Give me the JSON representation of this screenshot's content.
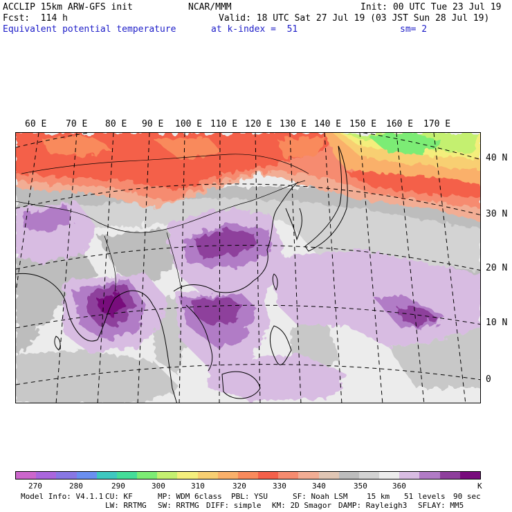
{
  "header": {
    "model_title": "ACCLIP 15km ARW-GFS init",
    "forecast": "Fcst:  114 h",
    "field_name": "Equivalent potential temperature",
    "institution": "NCAR/MMM",
    "init_time": "Init: 00 UTC Tue 23 Jul 19",
    "valid_time": "Valid: 18 UTC Sat 27 Jul 19 (03 JST Sun 28 Jul 19)",
    "level": "at k-index =  51",
    "smoothing": "sm= 2"
  },
  "map": {
    "longitude_labels": [
      "60 E",
      "70 E",
      "80 E",
      "90 E",
      "100 E",
      "110 E",
      "120 E",
      "130 E",
      "140 E",
      "150 E",
      "160 E",
      "170 E"
    ],
    "latitude_labels": [
      "40 N",
      "30 N",
      "20 N",
      "10 N",
      "0"
    ]
  },
  "colorbar": {
    "colors": [
      "#cc66cc",
      "#aa66dd",
      "#8877e4",
      "#6a8ff0",
      "#3ec8c0",
      "#44dd99",
      "#7cec74",
      "#c4f070",
      "#f4ee7c",
      "#f8cf72",
      "#fab06a",
      "#f98a5c",
      "#f4604a",
      "#f68b6f",
      "#f2ad94",
      "#e0c6b4",
      "#bdbdbd",
      "#d3d3d3",
      "#ececec",
      "#d8bce2",
      "#b17bc6",
      "#8e3f9c",
      "#780b7c"
    ],
    "labels": [
      "270",
      "280",
      "290",
      "300",
      "310",
      "320",
      "330",
      "340",
      "350",
      "360"
    ],
    "unit": "K"
  },
  "model_info": {
    "line1": [
      "Model Info: V4.1.1",
      "CU: KF",
      "MP: WDM 6class",
      "PBL: YSU",
      "SF: Noah LSM",
      "15 km",
      "51 levels",
      "90 sec"
    ],
    "line2": [
      "LW: RRTMG",
      "SW: RRTMG",
      "DIFF: simple",
      "KM: 2D Smagor",
      "DAMP: Rayleigh3",
      "SFLAY: MM5"
    ]
  }
}
